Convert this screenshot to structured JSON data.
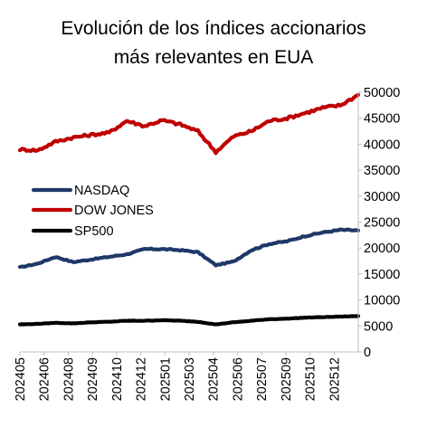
{
  "chart_data": {
    "type": "line",
    "title_lines": [
      "Evolución de los índices accionarios",
      "más relevantes en EUA"
    ],
    "xlabel": "",
    "ylabel": "",
    "x_tick_labels": [
      "202405",
      "202406",
      "202408",
      "202409",
      "202410",
      "202412",
      "202501",
      "202503",
      "202504",
      "202506",
      "202507",
      "202509",
      "202510",
      "202512"
    ],
    "x": [
      "202405",
      "202406",
      "202407",
      "202408",
      "202409",
      "202410",
      "202411",
      "202412",
      "202501",
      "202502",
      "202503",
      "202504",
      "202505",
      "202506",
      "202507",
      "202508",
      "202509",
      "202510",
      "202511",
      "202512"
    ],
    "ylim": [
      0,
      50000
    ],
    "y_ticks": [
      "0",
      "5000",
      "10000",
      "15000",
      "20000",
      "25000",
      "30000",
      "35000",
      "40000",
      "45000",
      "50000"
    ],
    "y_axis_side": "right",
    "grid": false,
    "legend_position": "left-middle",
    "series": [
      {
        "name": "NASDAQ",
        "color": "#1f3868",
        "values": [
          16300,
          17000,
          18300,
          17300,
          17800,
          18300,
          18800,
          19800,
          19800,
          19600,
          19200,
          16700,
          17400,
          19600,
          20800,
          21300,
          22300,
          23000,
          23500,
          23400
        ]
      },
      {
        "name": "DOW JONES",
        "color": "#c00000",
        "values": [
          39000,
          38800,
          40500,
          41300,
          41800,
          42200,
          44500,
          43500,
          44600,
          43800,
          42500,
          38500,
          41500,
          42500,
          44500,
          45000,
          46000,
          47000,
          47500,
          49500
        ]
      },
      {
        "name": "SP500",
        "color": "#000000",
        "values": [
          5300,
          5400,
          5600,
          5500,
          5700,
          5800,
          6000,
          6000,
          6100,
          6000,
          5800,
          5300,
          5700,
          6000,
          6300,
          6400,
          6600,
          6700,
          6800,
          6900
        ]
      }
    ]
  }
}
